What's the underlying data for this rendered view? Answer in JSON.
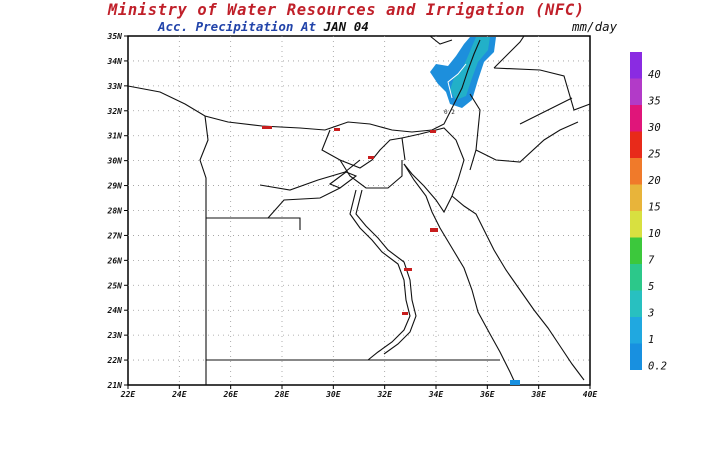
{
  "header": {
    "title": "Ministry of Water Resources and Irrigation (NFC)",
    "subtitle_label": "Acc. Precipitation",
    "subtitle_at": "At",
    "date": "JAN 04",
    "units": "mm/day"
  },
  "map": {
    "lon_range": [
      22,
      40
    ],
    "lat_range": [
      21,
      35
    ],
    "lon_ticks": [
      "22E",
      "24E",
      "26E",
      "28E",
      "30E",
      "32E",
      "34E",
      "36E",
      "38E",
      "40E"
    ],
    "lat_ticks": [
      "35N",
      "34N",
      "33N",
      "32N",
      "31N",
      "30N",
      "29N",
      "28N",
      "27N",
      "26N",
      "25N",
      "24N",
      "23N",
      "22N",
      "21N"
    ],
    "grid": "dotted"
  },
  "legend": {
    "levels": [
      {
        "label": "40",
        "color": "#8a2be2"
      },
      {
        "label": "35",
        "color": "#b23ac8"
      },
      {
        "label": "30",
        "color": "#e0157a"
      },
      {
        "label": "25",
        "color": "#e82a1a"
      },
      {
        "label": "20",
        "color": "#f07a2a"
      },
      {
        "label": "15",
        "color": "#e8b43a"
      },
      {
        "label": "10",
        "color": "#d8e040"
      },
      {
        "label": "7",
        "color": "#3cc83c"
      },
      {
        "label": "5",
        "color": "#2cc88a"
      },
      {
        "label": "3",
        "color": "#28c0c0"
      },
      {
        "label": "1",
        "color": "#20a8e0"
      },
      {
        "label": "0.2",
        "color": "#1890e0"
      }
    ]
  },
  "annotations": {
    "contour_label": "0.2"
  }
}
